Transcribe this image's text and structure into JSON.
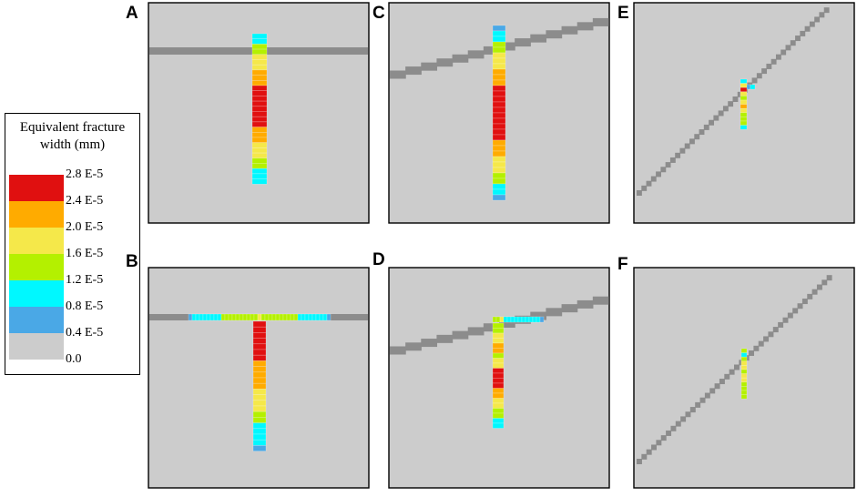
{
  "legend": {
    "title": "Equivalent fracture\nwidth (mm)",
    "ticks": [
      "2.8 E-5",
      "2.4 E-5",
      "2.0 E-5",
      "1.6 E-5",
      "1.2 E-5",
      "0.8 E-5",
      "0.4 E-5",
      "0.0"
    ],
    "swatch_colors": [
      "#e01010",
      "#ffab00",
      "#f5e84a",
      "#b4f000",
      "#00f8ff",
      "#4aa8e6",
      "#cccccc"
    ]
  },
  "colors": {
    "background": "#cccccc",
    "natural_fracture": "#8c8c8c",
    "frame": "#000000"
  },
  "panels": [
    {
      "label": "A"
    },
    {
      "label": "B"
    },
    {
      "label": "C"
    },
    {
      "label": "D"
    },
    {
      "label": "E"
    },
    {
      "label": "F"
    }
  ]
}
